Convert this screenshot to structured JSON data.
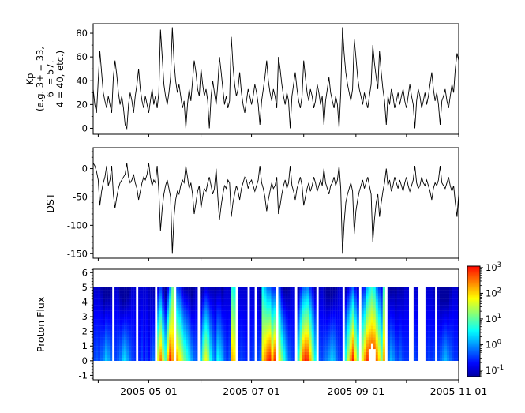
{
  "figure": {
    "background": "#ffffff",
    "frame_color": "#000000",
    "line_color": "#000000"
  },
  "x_axis": {
    "start": "2005-03-29",
    "end": "2005-11-01",
    "month_ticks": [
      "2005-04-01",
      "2005-05-01",
      "2005-06-01",
      "2005-07-01",
      "2005-08-01",
      "2005-09-01",
      "2005-10-01",
      "2005-11-01"
    ],
    "labels": [
      "2005-05-01",
      "2005-07-01",
      "2005-09-01",
      "2005-11-01"
    ]
  },
  "chart_data": [
    {
      "type": "line",
      "name": "kp",
      "ylabel": "Kp\n(e.g. 3+ = 33,\n6- = 57,\n4 = 40, etc.)",
      "ylim": [
        -5,
        88
      ],
      "yticks": [
        0,
        20,
        40,
        60,
        80
      ],
      "y_minor_step": 10,
      "x_start": "2005-03-29",
      "points_per_day": 1,
      "values": [
        33,
        20,
        13,
        40,
        65,
        47,
        30,
        23,
        17,
        27,
        20,
        13,
        43,
        57,
        45,
        30,
        20,
        27,
        17,
        3,
        0,
        20,
        30,
        23,
        13,
        27,
        37,
        50,
        33,
        23,
        17,
        27,
        20,
        13,
        23,
        33,
        20,
        27,
        17,
        30,
        83,
        60,
        37,
        27,
        20,
        30,
        43,
        85,
        57,
        40,
        30,
        37,
        27,
        17,
        23,
        0,
        20,
        33,
        23,
        40,
        57,
        47,
        33,
        27,
        50,
        37,
        27,
        33,
        23,
        0,
        27,
        40,
        30,
        20,
        37,
        60,
        47,
        33,
        20,
        27,
        17,
        23,
        77,
        53,
        37,
        27,
        33,
        47,
        30,
        20,
        13,
        23,
        33,
        27,
        20,
        27,
        37,
        30,
        20,
        3,
        23,
        33,
        43,
        57,
        40,
        30,
        23,
        33,
        27,
        17,
        60,
        50,
        37,
        27,
        20,
        30,
        23,
        0,
        27,
        37,
        47,
        33,
        23,
        17,
        27,
        57,
        43,
        30,
        23,
        33,
        27,
        17,
        23,
        37,
        30,
        20,
        27,
        3,
        23,
        33,
        43,
        30,
        23,
        17,
        27,
        20,
        0,
        30,
        85,
        63,
        47,
        37,
        30,
        23,
        33,
        75,
        60,
        43,
        33,
        27,
        20,
        30,
        23,
        17,
        27,
        37,
        70,
        55,
        43,
        33,
        65,
        47,
        33,
        23,
        3,
        27,
        20,
        33,
        27,
        17,
        23,
        30,
        20,
        27,
        33,
        23,
        17,
        27,
        37,
        27,
        20,
        0,
        23,
        33,
        27,
        17,
        23,
        30,
        20,
        27,
        37,
        47,
        33,
        23,
        30,
        20,
        3,
        23,
        27,
        33,
        23,
        17,
        27,
        37,
        30,
        50,
        63,
        57
      ]
    },
    {
      "type": "line",
      "name": "dst",
      "ylabel": "DST",
      "ylim": [
        -158,
        37
      ],
      "yticks": [
        0,
        -50,
        -100,
        -150
      ],
      "y_minor_step": 10,
      "x_start": "2005-03-29",
      "points_per_day": 1,
      "values": [
        10,
        5,
        -5,
        -20,
        -65,
        -40,
        -25,
        -15,
        5,
        -30,
        -20,
        5,
        -45,
        -70,
        -50,
        -35,
        -25,
        -20,
        -15,
        -10,
        10,
        -15,
        -25,
        -20,
        -10,
        -25,
        -35,
        -55,
        -40,
        -25,
        -15,
        -20,
        -10,
        10,
        -15,
        -30,
        -20,
        -25,
        5,
        -40,
        -110,
        -70,
        -45,
        -30,
        -20,
        -35,
        -50,
        -150,
        -85,
        -55,
        -40,
        -45,
        -30,
        -20,
        -25,
        5,
        -15,
        -35,
        -25,
        -45,
        -80,
        -60,
        -40,
        -30,
        -70,
        -50,
        -35,
        -40,
        -25,
        -15,
        -30,
        -45,
        -35,
        0,
        -50,
        -90,
        -65,
        -45,
        -30,
        -35,
        -20,
        -25,
        -85,
        -60,
        -45,
        -30,
        -40,
        -55,
        -35,
        -25,
        -15,
        -20,
        -35,
        -25,
        -20,
        -30,
        -40,
        -30,
        -20,
        5,
        -25,
        -35,
        -50,
        -75,
        -55,
        -40,
        -25,
        -35,
        -30,
        -15,
        -80,
        -65,
        -45,
        -30,
        -20,
        -35,
        -25,
        5,
        -30,
        -40,
        -55,
        -35,
        -25,
        -15,
        -30,
        -65,
        -50,
        -35,
        -25,
        -40,
        -30,
        -15,
        -25,
        -40,
        -30,
        -20,
        -30,
        0,
        -25,
        -35,
        -45,
        -30,
        -25,
        -15,
        -30,
        -20,
        5,
        -35,
        -150,
        -95,
        -60,
        -45,
        -35,
        -25,
        -40,
        -115,
        -75,
        -55,
        -40,
        -30,
        -20,
        -35,
        -25,
        -15,
        -30,
        -45,
        -130,
        -90,
        -60,
        -45,
        -85,
        -60,
        -40,
        -25,
        0,
        -30,
        -20,
        -40,
        -30,
        -15,
        -25,
        -35,
        -20,
        -30,
        -40,
        -25,
        -15,
        -30,
        -40,
        -30,
        -20,
        5,
        -25,
        -35,
        -30,
        -15,
        -25,
        -30,
        -20,
        -30,
        -40,
        -55,
        -35,
        -25,
        -30,
        -20,
        5,
        -25,
        -30,
        -35,
        -25,
        -15,
        -30,
        -40,
        -30,
        -60,
        -85,
        -45
      ]
    },
    {
      "type": "heatmap",
      "name": "proton_flux",
      "ylabel": "Proton Flux",
      "ylim": [
        -1.3,
        6.23
      ],
      "yticks": [
        6,
        5,
        4,
        3,
        2,
        1,
        0,
        -1
      ],
      "y_minor_step": 0.2,
      "data_y_range": [
        0,
        5
      ],
      "column_encoding": "per column: null = data gap (white); [base, slope] = log10 flux at y via base - slope*y; optional 3rd value = white below that y",
      "columns": [
        [
          -0.4,
          0.12
        ],
        [
          -0.3,
          0.15
        ],
        [
          -0.4,
          0.12
        ],
        [
          -0.2,
          0.2
        ],
        [
          0,
          0.3
        ],
        [
          0.3,
          0.35
        ],
        [
          0.1,
          0.3
        ],
        [
          -0.2,
          0.2
        ],
        null,
        [
          -0.4,
          0.12
        ],
        [
          -0.3,
          0.15
        ],
        [
          -0.1,
          0.25
        ],
        [
          0.3,
          0.38
        ],
        [
          0.4,
          0.4
        ],
        [
          0.1,
          0.3
        ],
        [
          -0.2,
          0.2
        ],
        [
          -0.4,
          0.12
        ],
        [
          -0.5,
          0.1
        ],
        null,
        [
          -0.6,
          0.08
        ],
        [
          -0.4,
          0.12
        ],
        [
          -0.7,
          0.06
        ],
        [
          -0.5,
          0.1
        ],
        [
          -0.7,
          0.08
        ],
        [
          -0.4,
          0.15
        ],
        [
          -0.2,
          0.2
        ],
        null,
        [
          1.8,
          0.55
        ],
        [
          2.5,
          0.6
        ],
        [
          1.6,
          0.55
        ],
        [
          1,
          0.5
        ],
        [
          2.2,
          0.6
        ],
        [
          3,
          0.6
        ],
        [
          2.3,
          0.25
        ],
        null,
        [
          2.3,
          0.55
        ],
        [
          1.9,
          0.5
        ],
        [
          1.5,
          0.5
        ],
        [
          1.1,
          0.45
        ],
        [
          0.8,
          0.4
        ],
        [
          0.5,
          0.35
        ],
        [
          0.1,
          0.3
        ],
        [
          -0.2,
          0.2
        ],
        [
          -0.3,
          0.15
        ],
        null,
        [
          0.4,
          0.35
        ],
        [
          1.3,
          0.5
        ],
        [
          1.8,
          0.55
        ],
        [
          1.4,
          0.5
        ],
        [
          0.6,
          0.35
        ],
        [
          0.1,
          0.25
        ],
        [
          -0.2,
          0.2
        ],
        [
          0.6,
          0.35
        ],
        [
          0.4,
          0.3
        ],
        [
          0.2,
          0.3
        ],
        [
          -0.3,
          0.15
        ],
        [
          -0.5,
          0.1
        ],
        [
          -0.3,
          0.15
        ],
        [
          2.2,
          0.3
        ],
        [
          2,
          0.3
        ],
        null,
        [
          -0.5,
          0.1
        ],
        [
          -0.4,
          0.12
        ],
        [
          -0.5,
          0.1
        ],
        [
          -0.6,
          0.08
        ],
        null,
        [
          -0.5,
          0.1
        ],
        [
          -0.4,
          0.12
        ],
        null,
        [
          -0.4,
          0.12
        ],
        [
          -0.2,
          0.25
        ],
        [
          2,
          0.3
        ],
        [
          2.4,
          0.45
        ],
        [
          2.8,
          0.6
        ],
        [
          3,
          0.65
        ],
        [
          2.2,
          0.55
        ],
        [
          2.9,
          0.7
        ],
        null,
        [
          1.8,
          0.45
        ],
        [
          1.2,
          0.45
        ],
        [
          0.7,
          0.4
        ],
        [
          0.2,
          0.3
        ],
        [
          -0.2,
          0.2
        ],
        [
          -0.4,
          0.12
        ],
        [
          -0.5,
          0.1
        ],
        null,
        [
          0.8,
          0.4
        ],
        [
          1.8,
          0.5
        ],
        [
          2.7,
          0.6
        ],
        [
          3,
          0.65
        ],
        [
          2.9,
          0.6
        ],
        [
          2.2,
          0.55
        ],
        [
          1.4,
          0.45
        ],
        [
          0.6,
          0.35
        ],
        null,
        [
          -0.3,
          0.15
        ],
        [
          -0.4,
          0.12
        ],
        [
          -0.2,
          0.2
        ],
        [
          -0.1,
          0.25
        ],
        [
          0.1,
          0.3
        ],
        [
          0.3,
          0.35
        ],
        [
          0.2,
          0.3
        ],
        [
          -0.2,
          0.2
        ],
        [
          -0.4,
          0.12
        ],
        [
          -0.5,
          0.1
        ],
        null,
        [
          0.8,
          0.4
        ],
        [
          1.6,
          0.5
        ],
        [
          2.4,
          0.6
        ],
        [
          3,
          0.65
        ],
        [
          2,
          0.55
        ],
        [
          1.2,
          0.45
        ],
        null,
        [
          1.8,
          0.5
        ],
        [
          2.4,
          0.6
        ],
        [
          2.9,
          0.55
        ],
        [
          3,
          0.5,
          0.8
        ],
        [
          3,
          0.45,
          1.2
        ],
        [
          3,
          0.5,
          0.9
        ],
        [
          2.6,
          0.55
        ],
        [
          2,
          0.5
        ],
        [
          1.2,
          0.4
        ],
        [
          2.2,
          0.28
        ],
        null,
        [
          -0.2,
          0.2
        ],
        [
          0.2,
          0.3
        ],
        [
          0,
          0.25
        ],
        [
          -0.3,
          0.2
        ],
        [
          -0.4,
          0.15
        ],
        [
          -0.2,
          0.2
        ],
        [
          -0.4,
          0.15
        ],
        [
          -0.5,
          0.1
        ],
        [
          -0.5,
          0.1
        ],
        null,
        null,
        [
          -0.4,
          0.12
        ],
        [
          -0.5,
          0.1
        ],
        null,
        null,
        null,
        [
          -0.5,
          0.1
        ],
        [
          -0.4,
          0.12
        ],
        [
          -0.5,
          0.1
        ],
        [
          -0.4,
          0.15
        ],
        null,
        [
          -0.4,
          0.15
        ],
        [
          -0.2,
          0.25
        ],
        [
          0,
          0.3
        ],
        [
          0.2,
          0.35
        ],
        [
          0,
          0.3
        ],
        [
          -0.2,
          0.2
        ],
        [
          -0.4,
          0.12
        ],
        [
          -0.5,
          0.1
        ],
        [
          -0.5,
          0.1
        ]
      ],
      "colorbar": {
        "scale": "log10",
        "label_base": "10",
        "tick_exponents": [
          3,
          2,
          1,
          0,
          -1
        ],
        "range_exponents": [
          -1.25,
          3.06
        ],
        "colormap": "jet"
      }
    }
  ]
}
